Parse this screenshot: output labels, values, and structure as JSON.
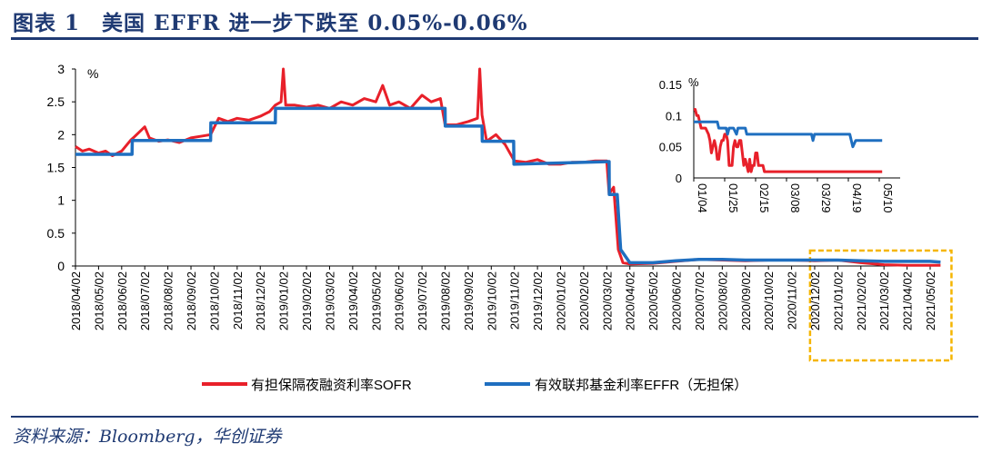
{
  "title": "图表 1　美国 EFFR 进一步下跌至 0.05%-0.06%",
  "source": "资料来源：Bloomberg，华创证券",
  "colors": {
    "sofr": "#e8202a",
    "effr": "#1f6fc0",
    "highlight": "#f5b500",
    "title": "#1f3a73"
  },
  "chart_data": [
    {
      "type": "line",
      "title": "",
      "ylabel": "%",
      "ylim": [
        0,
        3
      ],
      "yticks": [
        "0",
        "0.5",
        "1",
        "1.5",
        "2",
        "2.5",
        "3"
      ],
      "categories": [
        "2018/04/02",
        "2018/05/02",
        "2018/06/02",
        "2018/07/02",
        "2018/08/02",
        "2018/09/02",
        "2018/10/02",
        "2018/11/02",
        "2018/12/02",
        "2019/01/02",
        "2019/02/02",
        "2019/03/02",
        "2019/04/02",
        "2019/05/02",
        "2019/06/02",
        "2019/07/02",
        "2019/08/02",
        "2019/09/02",
        "2019/10/02",
        "2019/11/02",
        "2019/12/02",
        "2020/01/02",
        "2020/02/02",
        "2020/03/02",
        "2020/04/02",
        "2020/05/02",
        "2020/06/02",
        "2020/07/02",
        "2020/08/02",
        "2020/09/02",
        "2020/10/02",
        "2020/11/02",
        "2020/12/02",
        "2021/01/02",
        "2021/02/02",
        "2021/03/02",
        "2021/04/02",
        "2021/05/02"
      ],
      "x_note": "x in months since 2018/04/02",
      "series": [
        {
          "name": "有担保隔夜融资利率SOFR",
          "x": [
            0,
            0.3,
            0.6,
            1,
            1.3,
            1.6,
            2,
            2.4,
            2.5,
            3,
            3.2,
            3.6,
            4,
            4.5,
            5,
            5.5,
            5.85,
            6.2,
            6.6,
            7,
            7.5,
            8,
            8.4,
            8.65,
            8.9,
            9.0,
            9.1,
            9.5,
            10,
            10.5,
            11,
            11.5,
            12,
            12.5,
            13,
            13.3,
            13.6,
            14,
            14.5,
            15,
            15.4,
            15.8,
            16,
            16.5,
            17,
            17.4,
            17.5,
            17.6,
            17.8,
            18.2,
            18.6,
            19,
            19.5,
            20,
            20.5,
            21,
            21.5,
            22,
            22.5,
            23,
            23.1,
            23.3,
            23.5,
            23.7,
            24,
            25,
            26,
            27,
            28,
            29,
            30,
            31,
            32,
            33,
            34,
            35,
            36,
            37,
            37.45
          ],
          "y": [
            1.82,
            1.75,
            1.78,
            1.72,
            1.75,
            1.68,
            1.75,
            1.92,
            1.95,
            2.12,
            1.95,
            1.9,
            1.92,
            1.88,
            1.95,
            1.98,
            2.0,
            2.25,
            2.2,
            2.25,
            2.22,
            2.28,
            2.35,
            2.45,
            2.5,
            3.0,
            2.45,
            2.45,
            2.42,
            2.45,
            2.4,
            2.5,
            2.45,
            2.55,
            2.5,
            2.75,
            2.45,
            2.5,
            2.4,
            2.6,
            2.5,
            2.55,
            2.15,
            2.15,
            2.2,
            2.25,
            3.0,
            2.3,
            1.9,
            2.0,
            1.85,
            1.6,
            1.58,
            1.62,
            1.55,
            1.55,
            1.58,
            1.58,
            1.6,
            1.6,
            1.1,
            1.2,
            0.25,
            0.05,
            0.03,
            0.04,
            0.07,
            0.1,
            0.09,
            0.08,
            0.09,
            0.09,
            0.08,
            0.09,
            0.05,
            0.02,
            0.01,
            0.01,
            0.01
          ]
        },
        {
          "name": "有效联邦基金利率EFFR（无担保）",
          "x": [
            0,
            2.45,
            2.46,
            5.85,
            5.86,
            8.65,
            8.66,
            16,
            16.01,
            17.6,
            17.61,
            18.97,
            18.98,
            23.1,
            23.11,
            23.45,
            23.6,
            24,
            25,
            26,
            27,
            28,
            29,
            30,
            31,
            32,
            33,
            34,
            35,
            36,
            37,
            37.45
          ],
          "y": [
            1.7,
            1.7,
            1.91,
            1.91,
            2.18,
            2.18,
            2.4,
            2.4,
            2.13,
            2.13,
            1.9,
            1.9,
            1.55,
            1.59,
            1.09,
            1.09,
            0.25,
            0.05,
            0.05,
            0.08,
            0.1,
            0.1,
            0.09,
            0.09,
            0.09,
            0.09,
            0.09,
            0.08,
            0.07,
            0.07,
            0.07,
            0.06
          ]
        }
      ],
      "legend": "bottom",
      "annotation": "highlight box 2020/12 – 2021/05"
    },
    {
      "type": "line",
      "title": "inset",
      "ylabel": "%",
      "ylim": [
        0,
        0.15
      ],
      "yticks": [
        "0",
        "0.05",
        "0.1",
        "0.15"
      ],
      "xticks": [
        "01/04",
        "01/25",
        "02/15",
        "03/08",
        "03/29",
        "04/19",
        "05/10"
      ],
      "x_note": "x in days since 01/04",
      "series": [
        {
          "name": "SOFR",
          "x": [
            0,
            1,
            2,
            3,
            4,
            5,
            8,
            10,
            11,
            12,
            13,
            14,
            15,
            16,
            17,
            18,
            19,
            20,
            21,
            22,
            23,
            24,
            25,
            26,
            27,
            28,
            29,
            30,
            31,
            32,
            33,
            34,
            35,
            36,
            37,
            38,
            39,
            40,
            41,
            42,
            43,
            44,
            45,
            46,
            47,
            48,
            50,
            52,
            60,
            80,
            100,
            120,
            128
          ],
          "y": [
            0.11,
            0.11,
            0.1,
            0.1,
            0.09,
            0.08,
            0.08,
            0.07,
            0.06,
            0.04,
            0.05,
            0.06,
            0.05,
            0.03,
            0.03,
            0.05,
            0.06,
            0.06,
            0.07,
            0.07,
            0.06,
            0.02,
            0.02,
            0.02,
            0.05,
            0.06,
            0.05,
            0.05,
            0.06,
            0.06,
            0.04,
            0.02,
            0.03,
            0.02,
            0.01,
            0.03,
            0.01,
            0.02,
            0.02,
            0.04,
            0.04,
            0.02,
            0.02,
            0.02,
            0.02,
            0.01,
            0.01,
            0.01,
            0.01,
            0.01,
            0.01,
            0.01,
            0.01
          ]
        },
        {
          "name": "EFFR",
          "x": [
            0,
            16,
            17,
            22,
            23,
            24,
            27,
            29,
            30,
            35,
            36,
            44,
            45,
            50,
            80,
            81,
            82,
            106,
            108,
            110,
            128
          ],
          "y": [
            0.09,
            0.09,
            0.08,
            0.08,
            0.07,
            0.08,
            0.08,
            0.07,
            0.08,
            0.08,
            0.07,
            0.07,
            0.07,
            0.07,
            0.07,
            0.06,
            0.07,
            0.07,
            0.05,
            0.06,
            0.06
          ]
        }
      ]
    }
  ]
}
